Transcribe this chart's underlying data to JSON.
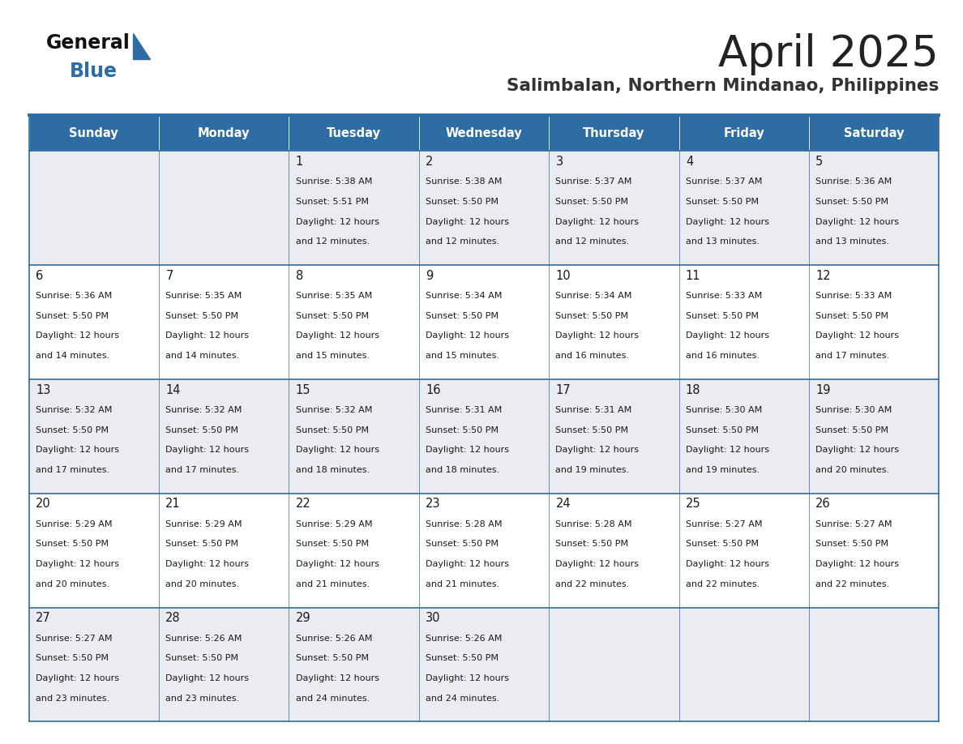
{
  "title": "April 2025",
  "subtitle": "Salimbalan, Northern Mindanao, Philippines",
  "header_bg": "#2E6DA4",
  "header_text": "#FFFFFF",
  "cell_bg_even": "#EAECF0",
  "cell_bg_odd": "#FFFFFF",
  "border_color": "#2E6DA4",
  "text_color": "#1a1a1a",
  "day_names": [
    "Sunday",
    "Monday",
    "Tuesday",
    "Wednesday",
    "Thursday",
    "Friday",
    "Saturday"
  ],
  "title_color": "#222222",
  "subtitle_color": "#333333",
  "calendar_data": [
    [
      {
        "day": "",
        "sunrise": "",
        "sunset": "",
        "daylight": ""
      },
      {
        "day": "",
        "sunrise": "",
        "sunset": "",
        "daylight": ""
      },
      {
        "day": "1",
        "sunrise": "5:38 AM",
        "sunset": "5:51 PM",
        "daylight": "12 hours and 12 minutes."
      },
      {
        "day": "2",
        "sunrise": "5:38 AM",
        "sunset": "5:50 PM",
        "daylight": "12 hours and 12 minutes."
      },
      {
        "day": "3",
        "sunrise": "5:37 AM",
        "sunset": "5:50 PM",
        "daylight": "12 hours and 12 minutes."
      },
      {
        "day": "4",
        "sunrise": "5:37 AM",
        "sunset": "5:50 PM",
        "daylight": "12 hours and 13 minutes."
      },
      {
        "day": "5",
        "sunrise": "5:36 AM",
        "sunset": "5:50 PM",
        "daylight": "12 hours and 13 minutes."
      }
    ],
    [
      {
        "day": "6",
        "sunrise": "5:36 AM",
        "sunset": "5:50 PM",
        "daylight": "12 hours and 14 minutes."
      },
      {
        "day": "7",
        "sunrise": "5:35 AM",
        "sunset": "5:50 PM",
        "daylight": "12 hours and 14 minutes."
      },
      {
        "day": "8",
        "sunrise": "5:35 AM",
        "sunset": "5:50 PM",
        "daylight": "12 hours and 15 minutes."
      },
      {
        "day": "9",
        "sunrise": "5:34 AM",
        "sunset": "5:50 PM",
        "daylight": "12 hours and 15 minutes."
      },
      {
        "day": "10",
        "sunrise": "5:34 AM",
        "sunset": "5:50 PM",
        "daylight": "12 hours and 16 minutes."
      },
      {
        "day": "11",
        "sunrise": "5:33 AM",
        "sunset": "5:50 PM",
        "daylight": "12 hours and 16 minutes."
      },
      {
        "day": "12",
        "sunrise": "5:33 AM",
        "sunset": "5:50 PM",
        "daylight": "12 hours and 17 minutes."
      }
    ],
    [
      {
        "day": "13",
        "sunrise": "5:32 AM",
        "sunset": "5:50 PM",
        "daylight": "12 hours and 17 minutes."
      },
      {
        "day": "14",
        "sunrise": "5:32 AM",
        "sunset": "5:50 PM",
        "daylight": "12 hours and 17 minutes."
      },
      {
        "day": "15",
        "sunrise": "5:32 AM",
        "sunset": "5:50 PM",
        "daylight": "12 hours and 18 minutes."
      },
      {
        "day": "16",
        "sunrise": "5:31 AM",
        "sunset": "5:50 PM",
        "daylight": "12 hours and 18 minutes."
      },
      {
        "day": "17",
        "sunrise": "5:31 AM",
        "sunset": "5:50 PM",
        "daylight": "12 hours and 19 minutes."
      },
      {
        "day": "18",
        "sunrise": "5:30 AM",
        "sunset": "5:50 PM",
        "daylight": "12 hours and 19 minutes."
      },
      {
        "day": "19",
        "sunrise": "5:30 AM",
        "sunset": "5:50 PM",
        "daylight": "12 hours and 20 minutes."
      }
    ],
    [
      {
        "day": "20",
        "sunrise": "5:29 AM",
        "sunset": "5:50 PM",
        "daylight": "12 hours and 20 minutes."
      },
      {
        "day": "21",
        "sunrise": "5:29 AM",
        "sunset": "5:50 PM",
        "daylight": "12 hours and 20 minutes."
      },
      {
        "day": "22",
        "sunrise": "5:29 AM",
        "sunset": "5:50 PM",
        "daylight": "12 hours and 21 minutes."
      },
      {
        "day": "23",
        "sunrise": "5:28 AM",
        "sunset": "5:50 PM",
        "daylight": "12 hours and 21 minutes."
      },
      {
        "day": "24",
        "sunrise": "5:28 AM",
        "sunset": "5:50 PM",
        "daylight": "12 hours and 22 minutes."
      },
      {
        "day": "25",
        "sunrise": "5:27 AM",
        "sunset": "5:50 PM",
        "daylight": "12 hours and 22 minutes."
      },
      {
        "day": "26",
        "sunrise": "5:27 AM",
        "sunset": "5:50 PM",
        "daylight": "12 hours and 22 minutes."
      }
    ],
    [
      {
        "day": "27",
        "sunrise": "5:27 AM",
        "sunset": "5:50 PM",
        "daylight": "12 hours and 23 minutes."
      },
      {
        "day": "28",
        "sunrise": "5:26 AM",
        "sunset": "5:50 PM",
        "daylight": "12 hours and 23 minutes."
      },
      {
        "day": "29",
        "sunrise": "5:26 AM",
        "sunset": "5:50 PM",
        "daylight": "12 hours and 24 minutes."
      },
      {
        "day": "30",
        "sunrise": "5:26 AM",
        "sunset": "5:50 PM",
        "daylight": "12 hours and 24 minutes."
      },
      {
        "day": "",
        "sunrise": "",
        "sunset": "",
        "daylight": ""
      },
      {
        "day": "",
        "sunrise": "",
        "sunset": "",
        "daylight": ""
      },
      {
        "day": "",
        "sunrise": "",
        "sunset": "",
        "daylight": ""
      }
    ]
  ],
  "fig_width": 11.88,
  "fig_height": 9.18,
  "dpi": 100
}
